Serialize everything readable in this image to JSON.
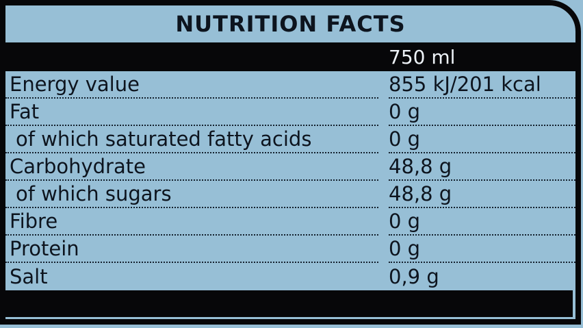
{
  "label": {
    "title": "NUTRITION FACTS",
    "serving_size": "750 ml",
    "rows": [
      {
        "name": "Energy value",
        "value": "855 kJ/201 kcal"
      },
      {
        "name": "Fat",
        "value": "0 g"
      },
      {
        "name": "of which saturated fatty acids",
        "value": "0 g"
      },
      {
        "name": "Carbohydrate",
        "value": "48,8 g"
      },
      {
        "name": "of which sugars",
        "value": "48,8 g"
      },
      {
        "name": "Fibre",
        "value": "0 g"
      },
      {
        "name": "Protein",
        "value": "0 g"
      },
      {
        "name": "Salt",
        "value": "0,9 g"
      }
    ],
    "colors": {
      "background_blue": "#97bfd6",
      "frame_black": "#070709",
      "text_dark": "#0d141e",
      "serving_text": "#edf2f7"
    }
  }
}
